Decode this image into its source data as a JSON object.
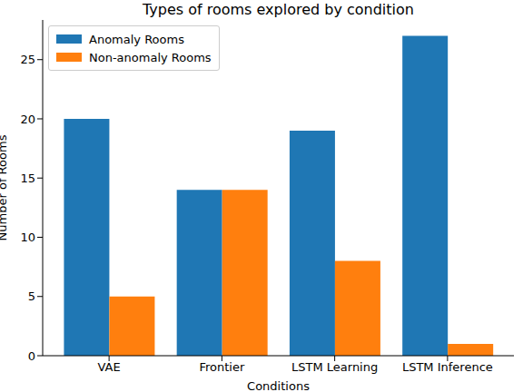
{
  "chart_data": {
    "type": "bar",
    "title": "Types of rooms explored by condition",
    "x_label": "Conditions",
    "y_label": "Number of Rooms",
    "categories": [
      "VAE",
      "Frontier",
      "LSTM Learning",
      "LSTM Inference"
    ],
    "series": [
      {
        "name": "Anomaly Rooms",
        "color": "#1f77b4",
        "values": [
          20,
          14,
          19,
          27
        ]
      },
      {
        "name": "Non-anomaly Rooms",
        "color": "#ff7f0e",
        "values": [
          5,
          14,
          8,
          1
        ]
      }
    ],
    "ylim": [
      0,
      28.35
    ],
    "yticks": [
      0,
      5,
      10,
      15,
      20,
      25
    ],
    "legend": "upper left",
    "grid": false
  }
}
